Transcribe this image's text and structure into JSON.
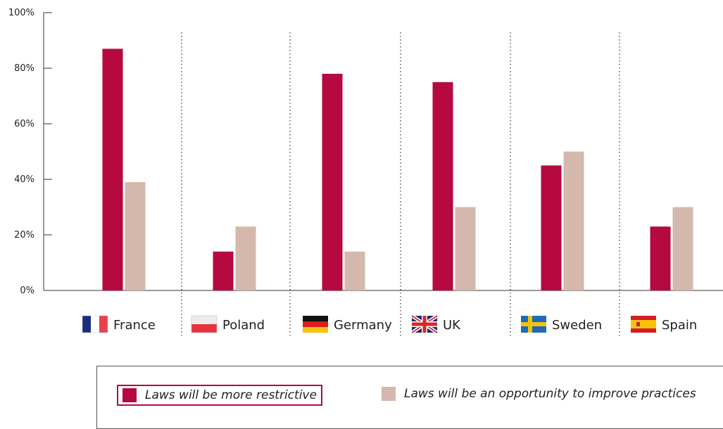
{
  "chart_data": {
    "type": "bar",
    "categories": [
      "France",
      "Poland",
      "Germany",
      "UK",
      "Sweden",
      "Spain"
    ],
    "series": [
      {
        "name": "Laws will be more restrictive",
        "color": "#b5093f",
        "values": [
          87,
          14,
          78,
          75,
          45,
          23
        ]
      },
      {
        "name": "Laws will be an opportunity to improve practices",
        "color": "#d4b8ab",
        "values": [
          39,
          23,
          14,
          30,
          50,
          30
        ]
      }
    ],
    "ylim": [
      0,
      100
    ],
    "yticks": [
      "0%",
      "20%",
      "40%",
      "60%",
      "80%",
      "100%"
    ],
    "ytick_values": [
      0,
      20,
      40,
      60,
      80,
      100
    ],
    "grid": false,
    "category_separators": "dotted",
    "flags": [
      "flag-france-icon",
      "flag-poland-icon",
      "flag-germany-icon",
      "flag-uk-icon",
      "flag-sweden-icon",
      "flag-spain-icon"
    ],
    "legend_position": "bottom",
    "highlighted_series": 0
  },
  "legend": {
    "item0": "Laws will be more restrictive",
    "item1": "Laws will be an opportunity to improve practices"
  }
}
